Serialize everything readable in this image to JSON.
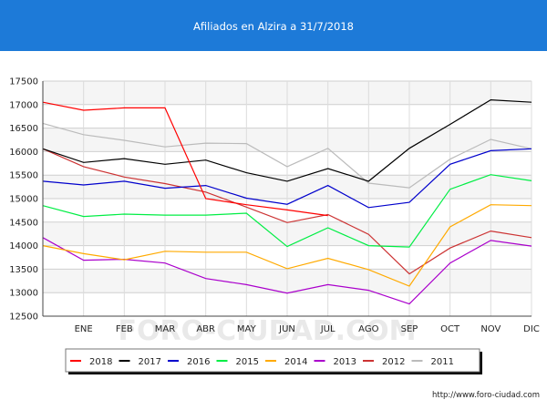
{
  "title": "Afiliados en Alzira a 31/7/2018",
  "watermark": "FORO-CIUDAD.COM",
  "source_url": "http://www.foro-ciudad.com",
  "colors": {
    "header": "#1d7ad8",
    "frame": "#1d7ad8"
  },
  "chart_data": {
    "type": "line",
    "categories": [
      "",
      "ENE",
      "FEB",
      "MAR",
      "ABR",
      "MAY",
      "JUN",
      "JUL",
      "AGO",
      "SEP",
      "OCT",
      "NOV",
      "DIC"
    ],
    "ylim": [
      12500,
      17500
    ],
    "yticks": [
      12500,
      13000,
      13500,
      14000,
      14500,
      15000,
      15500,
      16000,
      16500,
      17000,
      17500
    ],
    "grid": true,
    "legend_position": "bottom",
    "series": [
      {
        "name": "2018",
        "color": "#ff0000",
        "values": [
          17050,
          16880,
          16930,
          16930,
          15000,
          14870,
          14760,
          14640,
          null,
          null,
          null,
          null,
          null
        ]
      },
      {
        "name": "2017",
        "color": "#000000",
        "values": [
          16060,
          15770,
          15850,
          15730,
          15820,
          15550,
          15370,
          15640,
          15370,
          16070,
          16580,
          17100,
          17050
        ]
      },
      {
        "name": "2016",
        "color": "#0000cc",
        "values": [
          15370,
          15290,
          15370,
          15220,
          15280,
          15010,
          14880,
          15280,
          14810,
          14920,
          15730,
          16020,
          16060
        ]
      },
      {
        "name": "2015",
        "color": "#00ee44",
        "values": [
          14850,
          14620,
          14670,
          14650,
          14650,
          14690,
          13980,
          14380,
          14000,
          13970,
          15200,
          15510,
          15380
        ]
      },
      {
        "name": "2014",
        "color": "#ffaa00",
        "values": [
          14000,
          13830,
          13700,
          13880,
          13860,
          13860,
          13510,
          13730,
          13490,
          13140,
          14400,
          14870,
          14850
        ]
      },
      {
        "name": "2013",
        "color": "#aa00cc",
        "values": [
          14170,
          13690,
          13710,
          13630,
          13300,
          13170,
          12990,
          13170,
          13050,
          12760,
          13630,
          14110,
          13990
        ]
      },
      {
        "name": "2012",
        "color": "#cc3333",
        "values": [
          16060,
          15680,
          15460,
          15320,
          15140,
          14820,
          14490,
          14660,
          14240,
          13400,
          13950,
          14310,
          14170
        ]
      },
      {
        "name": "2011",
        "color": "#bbbbbb",
        "values": [
          16600,
          16360,
          16240,
          16100,
          16180,
          16170,
          15680,
          16070,
          15330,
          15230,
          15840,
          16260,
          16060
        ]
      }
    ]
  }
}
